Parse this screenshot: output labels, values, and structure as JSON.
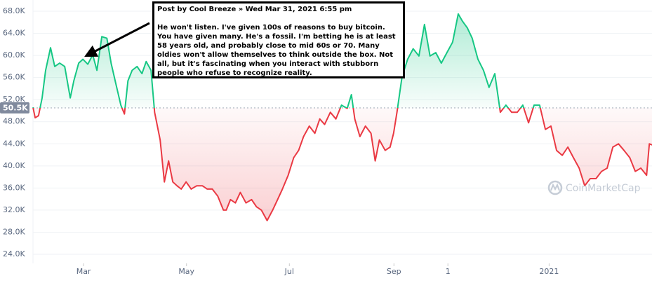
{
  "chart_data": {
    "type": "line",
    "xlim": [
      0,
      367
    ],
    "xticks": [
      {
        "value": 30,
        "label": "Mar"
      },
      {
        "value": 91,
        "label": "May"
      },
      {
        "value": 152,
        "label": "Jul"
      },
      {
        "value": 214,
        "label": "Sep"
      },
      {
        "value": 246,
        "label": "1"
      },
      {
        "value": 306,
        "label": "2021"
      }
    ],
    "ylim": [
      24,
      68
    ],
    "yticks": [
      {
        "value": 24,
        "label": "24.0K"
      },
      {
        "value": 28,
        "label": "28.0K"
      },
      {
        "value": 32,
        "label": "32.0K"
      },
      {
        "value": 36,
        "label": "36.0K"
      },
      {
        "value": 40,
        "label": "40.0K"
      },
      {
        "value": 44,
        "label": "44.0K"
      },
      {
        "value": 48,
        "label": "48.0K"
      },
      {
        "value": 52,
        "label": "52.0K"
      },
      {
        "value": 56,
        "label": "56.0K"
      },
      {
        "value": 60,
        "label": "60.0K"
      },
      {
        "value": 64,
        "label": "64.0K"
      },
      {
        "value": 68,
        "label": "68.0K"
      }
    ],
    "grid": true,
    "baseline": {
      "value": 50.5,
      "label": "50.5K"
    },
    "colors": {
      "above": "#16c784",
      "below": "#ea3943"
    },
    "x": [
      0,
      1.3,
      3.3,
      5.4,
      7.5,
      10.4,
      12.9,
      15.8,
      18.8,
      22.1,
      24.2,
      27.1,
      29.6,
      32.5,
      35.4,
      37.9,
      40.8,
      43.8,
      46.3,
      49.2,
      52.1,
      54.2,
      56.3,
      58.8,
      61.7,
      64.6,
      67.1,
      70.0,
      72.1,
      75.4,
      77.9,
      80.4,
      82.9,
      85.4,
      87.9,
      90.8,
      93.8,
      97.1,
      100.4,
      103.3,
      106.3,
      109.6,
      112.9,
      114.6,
      117.1,
      120.0,
      122.9,
      126.3,
      129.6,
      132.5,
      135.4,
      138.8,
      142.1,
      145.0,
      147.9,
      151.3,
      154.6,
      157.5,
      160.4,
      163.8,
      167.1,
      170.0,
      172.9,
      176.3,
      179.6,
      182.9,
      186.3,
      188.8,
      190.8,
      193.8,
      197.1,
      200.4,
      202.9,
      205.4,
      208.8,
      211.7,
      213.8,
      215.8,
      218.8,
      222.1,
      225.4,
      228.8,
      232.1,
      235.4,
      238.8,
      242.1,
      245.4,
      248.8,
      252.1,
      254.6,
      257.5,
      260.4,
      263.8,
      267.1,
      270.4,
      273.8,
      277.1,
      280.4,
      283.8,
      287.1,
      290.4,
      293.8,
      297.1,
      300.4,
      303.8,
      307.1,
      310.4,
      313.8,
      317.1,
      320.4,
      323.8,
      327.1,
      330.4,
      333.8,
      337.1,
      340.4,
      343.8,
      347.1,
      350.4,
      353.8,
      357.1,
      360.4,
      363.8,
      365.4,
      367
    ],
    "values": [
      50.6,
      48.7,
      49.1,
      52.3,
      57.3,
      61.4,
      58.0,
      58.6,
      58.0,
      52.3,
      55.4,
      58.6,
      59.3,
      58.4,
      60.1,
      57.3,
      63.4,
      63.1,
      58.6,
      54.8,
      51.0,
      49.4,
      55.4,
      57.3,
      58.0,
      56.7,
      58.9,
      57.3,
      49.7,
      44.7,
      37.1,
      40.9,
      37.1,
      36.4,
      35.8,
      37.1,
      35.8,
      36.4,
      36.4,
      35.8,
      35.8,
      34.5,
      32.0,
      32.0,
      33.9,
      33.3,
      35.2,
      33.3,
      33.9,
      32.6,
      32.0,
      30.1,
      32.0,
      33.9,
      35.8,
      38.3,
      41.5,
      42.8,
      45.3,
      47.2,
      45.9,
      48.5,
      47.5,
      49.7,
      48.5,
      51.0,
      50.4,
      52.9,
      48.5,
      45.3,
      47.2,
      45.9,
      40.9,
      44.7,
      42.8,
      43.4,
      45.9,
      49.7,
      56.1,
      59.3,
      61.2,
      59.9,
      65.6,
      59.9,
      60.5,
      58.6,
      60.5,
      62.4,
      67.5,
      66.2,
      65.0,
      63.1,
      59.3,
      57.3,
      54.2,
      56.7,
      49.7,
      51.0,
      49.7,
      49.7,
      51.0,
      47.8,
      51.0,
      51.0,
      46.6,
      47.2,
      42.8,
      41.9,
      43.4,
      41.5,
      39.6,
      36.4,
      37.7,
      37.7,
      39.0,
      39.6,
      43.4,
      44.0,
      42.8,
      41.5,
      39.0,
      39.6,
      38.3,
      44.0,
      43.8
    ],
    "watermark": "CoinMarketCap",
    "annotation": {
      "header": "Post by Cool Breeze » Wed Mar 31, 2021 6:55 pm",
      "text": "He won't listen. I've given 100s of reasons to buy bitcoin. You have given many. He's a fossil. I'm betting he is at least 58 years old, and probably close to mid 60s or 70. Many oldies won't allow themselves to think outside the box. Not all, but it's fascinating when you interact with stubborn people who refuse to recognize reality."
    }
  }
}
